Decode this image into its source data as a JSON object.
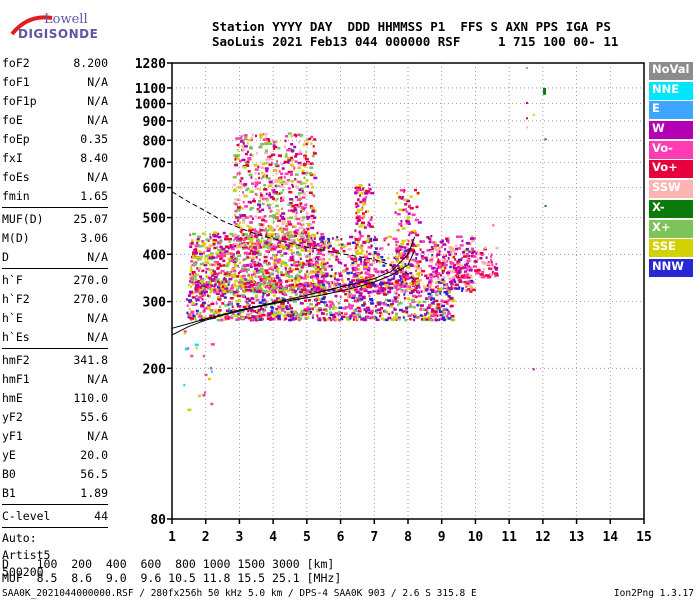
{
  "logo": {
    "line1": "Lowell",
    "line2": "DIGISONDE"
  },
  "header": {
    "line1": "Station YYYY DAY  DDD HHMMSS P1  FFS S AXN PPS IGA PS",
    "line2": "SaoLuis 2021 Feb13 044 000000 RSF     1 715 100 00- 11"
  },
  "params": {
    "group1": [
      {
        "name": "foF2",
        "value": "8.200"
      },
      {
        "name": "foF1",
        "value": "N/A"
      },
      {
        "name": "foF1p",
        "value": "N/A"
      },
      {
        "name": "foE",
        "value": "N/A"
      },
      {
        "name": "foEp",
        "value": "0.35"
      },
      {
        "name": "fxI",
        "value": "8.40"
      },
      {
        "name": "foEs",
        "value": "N/A"
      },
      {
        "name": "fmin",
        "value": "1.65"
      }
    ],
    "group2": [
      {
        "name": "MUF(D)",
        "value": "25.07"
      },
      {
        "name": "M(D)",
        "value": "3.06"
      },
      {
        "name": "D",
        "value": "N/A"
      }
    ],
    "group3": [
      {
        "name": "h`F",
        "value": "270.0"
      },
      {
        "name": "h`F2",
        "value": "270.0"
      },
      {
        "name": "h`E",
        "value": "N/A"
      },
      {
        "name": "h`Es",
        "value": "N/A"
      }
    ],
    "group4": [
      {
        "name": "hmF2",
        "value": "341.8"
      },
      {
        "name": "hmF1",
        "value": "N/A"
      },
      {
        "name": "hmE",
        "value": "110.0"
      },
      {
        "name": "yF2",
        "value": "55.6"
      },
      {
        "name": "yF1",
        "value": "N/A"
      },
      {
        "name": "yE",
        "value": "20.0"
      },
      {
        "name": "B0",
        "value": "56.5"
      },
      {
        "name": "B1",
        "value": "1.89"
      }
    ],
    "clevel": {
      "name": "C-level",
      "value": "44"
    },
    "auto": [
      "Auto:",
      "Artist5",
      "500200"
    ]
  },
  "legend": [
    {
      "label": "NoVal",
      "color": "#8c8c8c"
    },
    {
      "label": "NNE",
      "color": "#00e5ff"
    },
    {
      "label": "E",
      "color": "#3fa6ff"
    },
    {
      "label": "W",
      "color": "#b400b4"
    },
    {
      "label": "Vo-",
      "color": "#ff3cb4"
    },
    {
      "label": "Vo+",
      "color": "#e6003c"
    },
    {
      "label": "SSW",
      "color": "#ffb4b4"
    },
    {
      "label": "X-",
      "color": "#0a7a0a"
    },
    {
      "label": "X+",
      "color": "#7cc35a"
    },
    {
      "label": "SSE",
      "color": "#d2d200"
    },
    {
      "label": "NNW",
      "color": "#2828d2"
    }
  ],
  "footer": {
    "line1": "D    100  200  400  600  800 1000 1500 3000 [km]",
    "line2": "MUF  8.5  8.6  9.0  9.6 10.5 11.8 15.5 25.1 [MHz]",
    "line3": "SAA0K_2021044000000.RSF / 280fx256h 50 kHz 5.0 km / DPS-4 SAA0K 903 / 2.6 S 315.8 E",
    "version": "Ion2Png 1.3.17"
  },
  "chart_data": {
    "type": "scatter",
    "xlim": [
      1,
      15
    ],
    "ylim": [
      80,
      1280
    ],
    "yscale": "log",
    "x_ticks": [
      "1",
      "2",
      "3",
      "4",
      "5",
      "6",
      "7",
      "8",
      "9",
      "10",
      "11",
      "12",
      "13",
      "14",
      "15"
    ],
    "y_ticks": [
      {
        "value": 80,
        "label": "80"
      },
      {
        "value": 200,
        "label": "200"
      },
      {
        "value": 300,
        "label": "300"
      },
      {
        "value": 400,
        "label": "400"
      },
      {
        "value": 500,
        "label": "500"
      },
      {
        "value": 600,
        "label": "600"
      },
      {
        "value": 700,
        "label": "700"
      },
      {
        "value": 800,
        "label": "800"
      },
      {
        "value": 900,
        "label": "900"
      },
      {
        "value": 1000,
        "label": "1000"
      },
      {
        "value": 1100,
        "label": "1100"
      },
      {
        "value": 1280,
        "label": "1280"
      }
    ],
    "grid": true,
    "echo_clusters": [
      {
        "f": [
          1.4,
          9.3
        ],
        "h": [
          270,
          340
        ],
        "count": 900,
        "colors": [
          "#ff3cb4",
          "#e6003c",
          "#b400b4",
          "#d2d200",
          "#7cc35a",
          "#2828d2"
        ]
      },
      {
        "f": [
          1.5,
          5.5
        ],
        "h": [
          320,
          460
        ],
        "count": 900,
        "colors": [
          "#d2d200",
          "#7cc35a",
          "#ff3cb4",
          "#b400b4",
          "#e6003c"
        ]
      },
      {
        "f": [
          2.8,
          5.2
        ],
        "h": [
          420,
          840
        ],
        "count": 700,
        "colors": [
          "#d2d200",
          "#7cc35a",
          "#ff3cb4",
          "#b400b4",
          "#e6003c",
          "#ffb4b4"
        ]
      },
      {
        "f": [
          5.0,
          9.9
        ],
        "h": [
          320,
          450
        ],
        "count": 650,
        "colors": [
          "#ff3cb4",
          "#e6003c",
          "#b400b4",
          "#d2d200",
          "#2828d2",
          "#ffb4b4"
        ]
      },
      {
        "f": [
          6.4,
          6.9
        ],
        "h": [
          330,
          620
        ],
        "count": 150,
        "colors": [
          "#ff3cb4",
          "#b400b4",
          "#d2d200",
          "#e6003c"
        ]
      },
      {
        "f": [
          7.6,
          8.3
        ],
        "h": [
          330,
          600
        ],
        "count": 130,
        "colors": [
          "#ff3cb4",
          "#b400b4",
          "#d2d200",
          "#e6003c"
        ]
      },
      {
        "f": [
          8.6,
          10.6
        ],
        "h": [
          350,
          420
        ],
        "count": 180,
        "colors": [
          "#ff3cb4",
          "#e6003c",
          "#b400b4",
          "#ffb4b4"
        ]
      },
      {
        "f": [
          1.3,
          2.2
        ],
        "h": [
          150,
          280
        ],
        "count": 20,
        "colors": [
          "#ff3cb4",
          "#00e5ff",
          "#d2d200"
        ]
      }
    ],
    "isolated_points": [
      {
        "f": 11.5,
        "h": 1250,
        "color": "#7cc35a"
      },
      {
        "f": 11.5,
        "h": 1010,
        "color": "#b400b4"
      },
      {
        "f": 11.5,
        "h": 920,
        "color": "#b400b4"
      },
      {
        "f": 11.5,
        "h": 870,
        "color": "#ffb4b4"
      },
      {
        "f": 11.7,
        "h": 940,
        "color": "#d2d200"
      },
      {
        "f": 12.05,
        "h": 810,
        "color": "#0a7a0a"
      },
      {
        "f": 12.05,
        "h": 540,
        "color": "#0a7a0a"
      },
      {
        "f": 11.7,
        "h": 200,
        "color": "#b400b4"
      },
      {
        "f": 10.5,
        "h": 480,
        "color": "#ff3cb4"
      },
      {
        "f": 11.0,
        "h": 570,
        "color": "#7cc35a"
      }
    ],
    "x_mark": {
      "f": 12.05,
      "h_from": 1055,
      "h_to": 1100,
      "color": "#0a7a0a"
    },
    "trace_virtual": {
      "f": [
        1.0,
        1.5,
        2.0,
        2.5,
        3.0,
        3.5,
        4.0,
        4.5,
        5.0,
        5.5,
        6.0,
        6.5,
        7.0,
        7.5,
        8.0,
        8.2
      ],
      "h": [
        245,
        258,
        268,
        276,
        283,
        290,
        296,
        302,
        307,
        313,
        320,
        328,
        338,
        352,
        375,
        410
      ]
    },
    "trace_x": {
      "f": [
        1.0,
        2.0,
        3.0,
        4.0,
        5.0,
        5.5,
        6.0,
        6.5,
        7.0,
        7.5,
        8.0,
        8.2
      ],
      "h": [
        255,
        270,
        285,
        298,
        312,
        320,
        328,
        336,
        345,
        360,
        400,
        445
      ]
    },
    "profile_dashed": {
      "f": [
        1.0,
        1.5,
        2.0,
        2.5,
        3.0,
        3.5,
        4.0,
        4.5,
        5.0,
        5.5,
        6.0,
        6.5,
        7.0,
        7.5,
        8.0,
        8.2
      ],
      "h": [
        585,
        550,
        520,
        490,
        470,
        452,
        440,
        428,
        418,
        410,
        402,
        395,
        388,
        374,
        356,
        342
      ]
    }
  }
}
